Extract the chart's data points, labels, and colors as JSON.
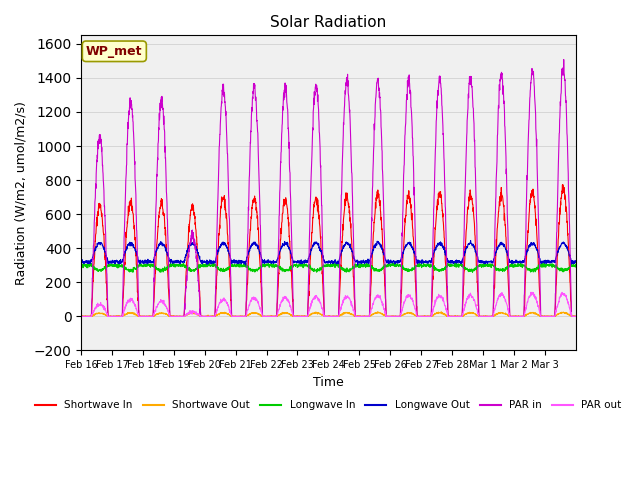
{
  "title": "Solar Radiation",
  "ylabel": "Radiation (W/m2, umol/m2/s)",
  "xlabel": "Time",
  "ylim": [
    -200,
    1650
  ],
  "yticks": [
    -200,
    0,
    200,
    400,
    600,
    800,
    1000,
    1200,
    1400,
    1600
  ],
  "date_labels": [
    "Feb 16",
    "Feb 17",
    "Feb 18",
    "Feb 19",
    "Feb 20",
    "Feb 21",
    "Feb 22",
    "Feb 23",
    "Feb 24",
    "Feb 25",
    "Feb 26",
    "Feb 27",
    "Feb 28",
    "Mar 1",
    "Mar 2",
    "Mar 3"
  ],
  "legend_entries": [
    "Shortwave In",
    "Shortwave Out",
    "Longwave In",
    "Longwave Out",
    "PAR in",
    "PAR out"
  ],
  "legend_colors": [
    "#ff0000",
    "#ffaa00",
    "#00cc00",
    "#0000cc",
    "#cc00cc",
    "#ff55ff"
  ],
  "wp_met_label": "WP_met",
  "plot_background": "#f0f0f0",
  "n_days": 16,
  "pts_per_day": 144
}
